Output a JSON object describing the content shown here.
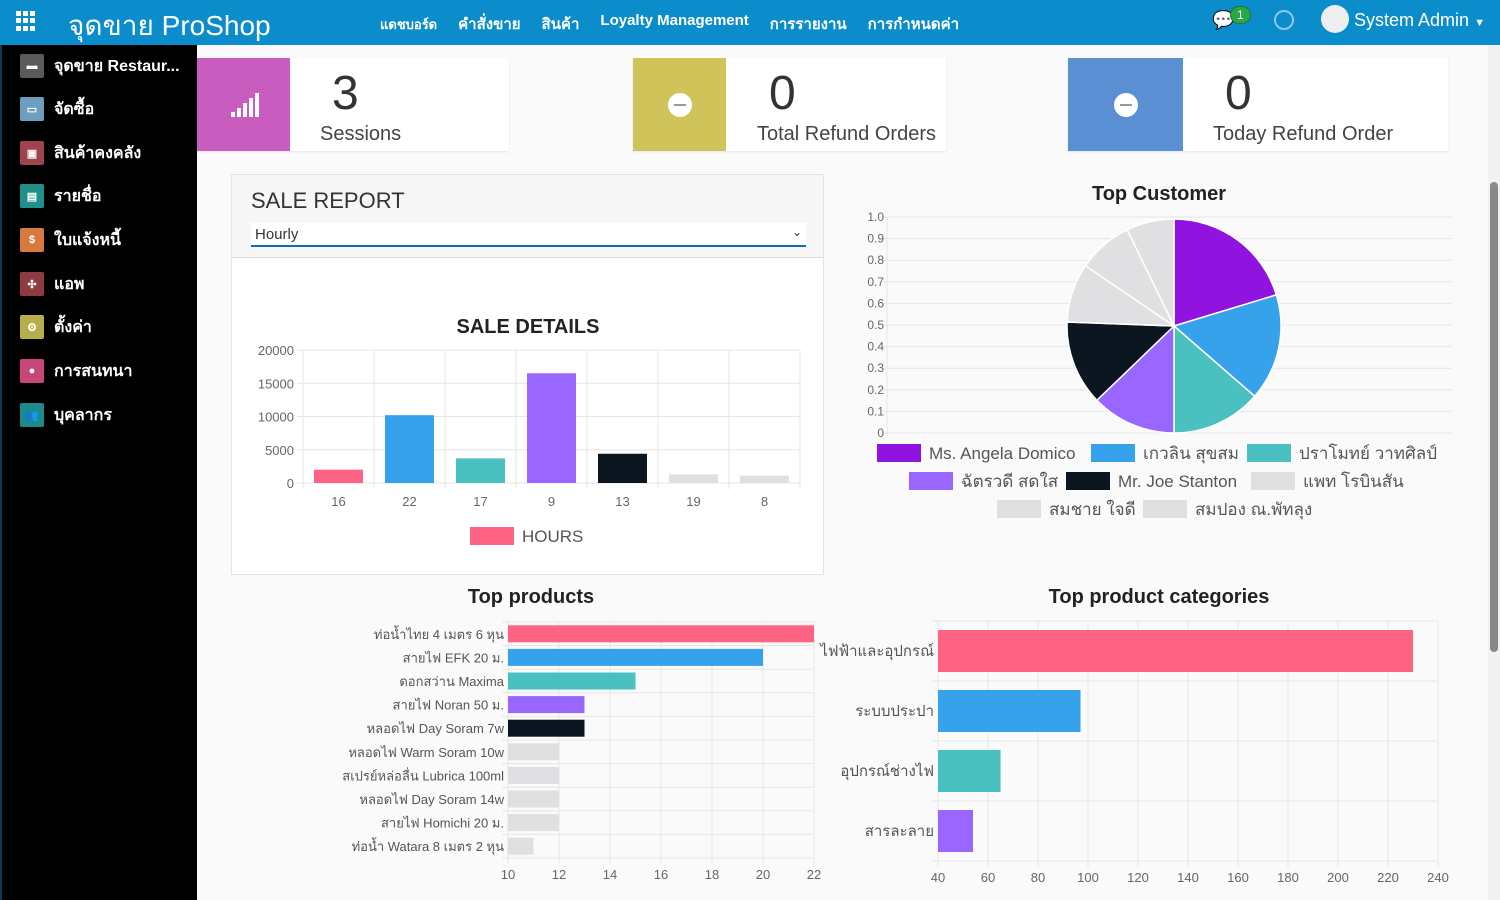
{
  "topbar": {
    "brand": "จุดขาย ProShop",
    "menu": [
      "แดชบอร์ด",
      "คำสั่งขาย",
      "สินค้า",
      "Loyalty Management",
      "การรายงาน",
      "การกำหนดค่า"
    ],
    "chat_count": "1",
    "user": "System Admin"
  },
  "sidebar": {
    "items": [
      {
        "label": "จุดขาย Restaur...",
        "color": "#5a5a5a"
      },
      {
        "label": "จัดซื้อ",
        "color": "#6d9ec0"
      },
      {
        "label": "สินค้าคงคลัง",
        "color": "#a0434c"
      },
      {
        "label": "รายชื่อ",
        "color": "#1f9188"
      },
      {
        "label": "ใบแจ้งหนี้",
        "color": "#d67a3e"
      },
      {
        "label": "แอพ",
        "color": "#8d3b3f"
      },
      {
        "label": "ตั้งค่า",
        "color": "#b5ae4a"
      },
      {
        "label": "การสนทนา",
        "color": "#c9467a"
      },
      {
        "label": "บุคลากร",
        "color": "#1c8a8a"
      }
    ]
  },
  "stats": [
    {
      "value": "3",
      "label": "Sessions",
      "color": "#c95cbf"
    },
    {
      "value": "0",
      "label": "Total Refund Orders",
      "color": "#cfc35a"
    },
    {
      "value": "0",
      "label": "Today Refund Order",
      "color": "#5b8fd3"
    }
  ],
  "sale_report": {
    "title": "SALE REPORT",
    "period": "Hourly"
  },
  "chart_data": [
    {
      "type": "bar",
      "title": "SALE DETAILS",
      "categories": [
        "16",
        "22",
        "17",
        "9",
        "13",
        "19",
        "8"
      ],
      "values": [
        2000,
        10200,
        3700,
        16500,
        4400,
        1300,
        1100
      ],
      "colors": [
        "#ff6384",
        "#36a2eb",
        "#4bc0c0",
        "#9966ff",
        "#0b1620",
        "#e0e0e3",
        "#e0e0e3"
      ],
      "legend": "HOURS",
      "ylim": [
        0,
        20000
      ],
      "yticks": [
        "0",
        "5000",
        "10000",
        "15000",
        "20000"
      ]
    },
    {
      "type": "pie",
      "title": "Top Customer",
      "labels": [
        "Ms. Angela Domico",
        "เกวลิน สุขสม",
        "ปราโมทย์ วาทศิลป์",
        "ฉัตรวดี สดใส",
        "Mr. Joe Stanton",
        "แพท โรบินสัน",
        "สมชาย ใจดี",
        "สมปอง ณ.พัทลุง"
      ],
      "values": [
        20.3,
        16.1,
        13.6,
        12.8,
        12.8,
        8.9,
        8.3,
        7.2
      ],
      "colors": [
        "#9013e0",
        "#36a2eb",
        "#4bc0c0",
        "#9966ff",
        "#0b1620",
        "#e0e0e3",
        "#e0e0e3",
        "#e0e0e3"
      ],
      "yticks": [
        "0",
        "0.1",
        "0.2",
        "0.3",
        "0.4",
        "0.5",
        "0.6",
        "0.7",
        "0.8",
        "0.9",
        "1.0"
      ]
    },
    {
      "type": "bar",
      "orientation": "horizontal",
      "title": "Top products",
      "categories": [
        "ท่อน้ำไทย 4 เมตร 6 หุน",
        "สายไฟ EFK 20 ม.",
        "ดอกสว่าน Maxima",
        "สายไฟ Noran 50 ม.",
        "หลอดไฟ Day Soram 7w",
        "หลอดไฟ Warm Soram 10w",
        "สเปรย์หล่อลื่น Lubrica 100ml",
        "หลอดไฟ Day Soram 14w",
        "สายไฟ Homichi 20 ม.",
        "ท่อน้ำ Watara 8 เมตร 2 หุน"
      ],
      "values": [
        22,
        20,
        15,
        13,
        13,
        12,
        12,
        12,
        12,
        11
      ],
      "colors": [
        "#ff6384",
        "#36a2eb",
        "#4bc0c0",
        "#9966ff",
        "#0b1620",
        "#e0e0e3",
        "#e0e0e3",
        "#e0e0e3",
        "#e0e0e3",
        "#e0e0e3"
      ],
      "xlim": [
        10,
        22
      ],
      "xticks": [
        "10",
        "12",
        "14",
        "16",
        "18",
        "20",
        "22"
      ]
    },
    {
      "type": "bar",
      "orientation": "horizontal",
      "title": "Top product categories",
      "categories": [
        "ไฟฟ้าและอุปกรณ์",
        "ระบบประปา",
        "อุปกรณ์ช่างไฟ",
        "สารละลาย"
      ],
      "values": [
        230,
        97,
        65,
        54
      ],
      "colors": [
        "#ff6384",
        "#36a2eb",
        "#4bc0c0",
        "#9966ff"
      ],
      "xlim": [
        40,
        240
      ],
      "xticks": [
        "40",
        "60",
        "80",
        "100",
        "120",
        "140",
        "160",
        "180",
        "200",
        "220",
        "240"
      ]
    }
  ]
}
